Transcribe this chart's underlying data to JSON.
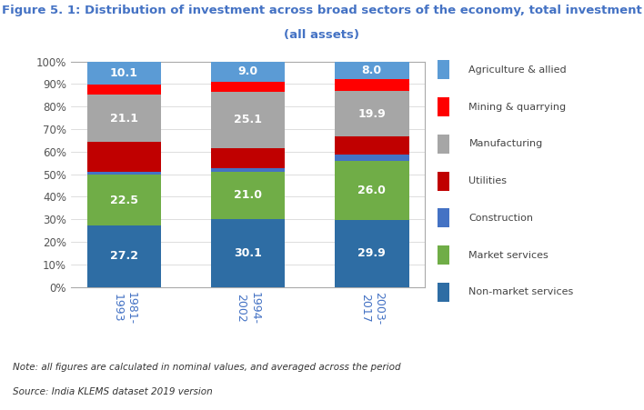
{
  "categories": [
    "1981-\n1993",
    "1994-\n2002",
    "2003-\n2017"
  ],
  "segments": [
    {
      "label": "Non-market services",
      "color": "#2e6da4",
      "values": [
        27.2,
        30.1,
        29.9
      ],
      "show_label": true
    },
    {
      "label": "Market services",
      "color": "#70ad47",
      "values": [
        22.5,
        21.0,
        26.0
      ],
      "show_label": true
    },
    {
      "label": "Construction",
      "color": "#4472c4",
      "values": [
        1.5,
        1.5,
        3.0
      ],
      "show_label": false
    },
    {
      "label": "Utilities",
      "color": "#c00000",
      "values": [
        13.0,
        9.0,
        8.0
      ],
      "show_label": false
    },
    {
      "label": "Manufacturing",
      "color": "#a6a6a6",
      "values": [
        21.1,
        25.1,
        19.9
      ],
      "show_label": true
    },
    {
      "label": "Mining & quarrying",
      "color": "#ff0000",
      "values": [
        4.6,
        4.3,
        5.2
      ],
      "show_label": false
    },
    {
      "label": "Agriculture & allied",
      "color": "#5b9bd5",
      "values": [
        10.1,
        9.0,
        8.0
      ],
      "show_label": true
    }
  ],
  "title_line1": "Figure 5. 1: Distribution of investment across broad sectors of the economy, total investment",
  "title_line2": "(all assets)",
  "title_color": "#4472c4",
  "note": "Note: all figures are calculated in nominal values, and averaged across the period",
  "source": "Source: India KLEMS dataset 2019 version",
  "ylim": [
    0,
    100
  ],
  "yticks": [
    0,
    10,
    20,
    30,
    40,
    50,
    60,
    70,
    80,
    90,
    100
  ],
  "ytick_labels": [
    "0%",
    "10%",
    "20%",
    "30%",
    "40%",
    "50%",
    "60%",
    "70%",
    "80%",
    "90%",
    "100%"
  ],
  "bar_width": 0.6,
  "background_color": "#ffffff",
  "text_color_on_bar": "#ffffff",
  "label_fontsize": 9,
  "title_fontsize": 9.5
}
